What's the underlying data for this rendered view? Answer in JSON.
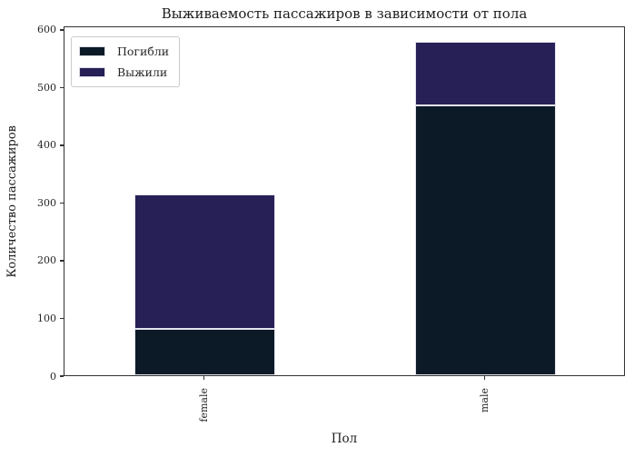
{
  "chart_data": {
    "type": "bar",
    "stacked": true,
    "title": "Выживаемость пассажиров в зависимости от пола",
    "xlabel": "Пол",
    "ylabel": "Количество пассажиров",
    "categories": [
      "female",
      "male"
    ],
    "series": [
      {
        "name": "Погибли",
        "values": [
          81,
          468
        ],
        "color": "#0c1a28"
      },
      {
        "name": "Выжили",
        "values": [
          233,
          109
        ],
        "color": "#262057"
      }
    ],
    "totals": [
      314,
      577
    ],
    "yticks": [
      0,
      100,
      200,
      300,
      400,
      500,
      600
    ],
    "ylim": [
      0,
      606
    ],
    "grid": false,
    "legend_position": "upper left",
    "bar_edge_color": "#e4e4ee",
    "spine_color": "#323232",
    "text_color": "#262626",
    "background_color": "#ffffff"
  }
}
